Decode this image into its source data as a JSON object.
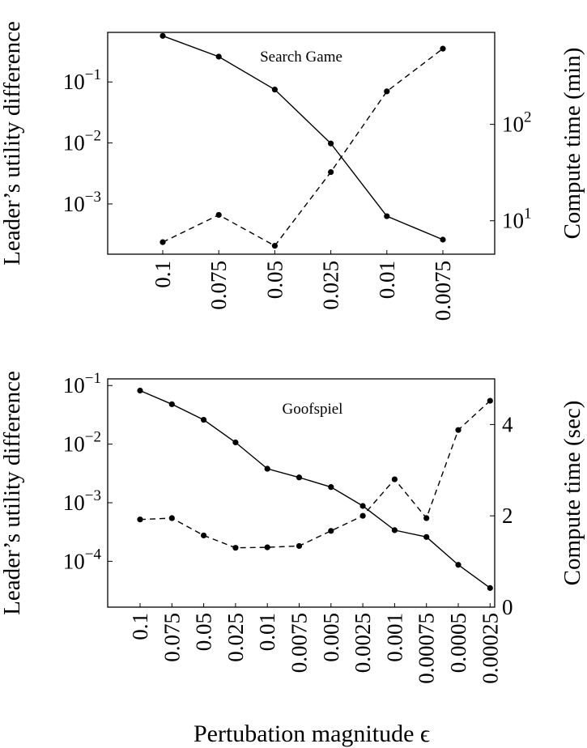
{
  "figure": {
    "xlabel": "Pertubation magnitude ϵ"
  },
  "chart_data": [
    {
      "type": "line",
      "title": "Search Game",
      "categories": [
        "0.1",
        "0.075",
        "0.05",
        "0.025",
        "0.01",
        "0.0075"
      ],
      "ylabel_left": "Leader’s utility difference",
      "ylabel_right": "Compute time (min)",
      "left_axis": {
        "scale": "log",
        "ylim": [
          0.00015,
          0.65
        ],
        "ticks": [
          0.001,
          0.01,
          0.1
        ],
        "tick_labels": [
          [
            "10",
            "−3"
          ],
          [
            "10",
            "−2"
          ],
          [
            "10",
            "−1"
          ]
        ]
      },
      "right_axis": {
        "scale": "log",
        "ylim": [
          4.5,
          900
        ],
        "ticks": [
          10,
          100
        ],
        "tick_labels": [
          [
            "10",
            "1"
          ],
          [
            "10",
            "2"
          ]
        ]
      },
      "series": [
        {
          "axis": "left",
          "style": "solid",
          "values": [
            0.57,
            0.26,
            0.075,
            0.0098,
            0.00063,
            0.00026
          ]
        },
        {
          "axis": "right",
          "style": "dashed",
          "values": [
            6.0,
            11.5,
            5.5,
            32,
            220,
            610
          ]
        }
      ],
      "grid": false
    },
    {
      "type": "line",
      "title": "Goofspiel",
      "categories": [
        "0.1",
        "0.075",
        "0.05",
        "0.025",
        "0.01",
        "0.0075",
        "0.005",
        "0.0025",
        "0.001",
        "0.00075",
        "0.0005",
        "0.00025"
      ],
      "ylabel_left": "Leader’s utility difference",
      "ylabel_right": "Compute time (sec)",
      "left_axis": {
        "scale": "log",
        "ylim": [
          1.65e-05,
          0.13
        ],
        "ticks": [
          0.0001,
          0.001,
          0.01,
          0.1
        ],
        "tick_labels": [
          [
            "10",
            "−4"
          ],
          [
            "10",
            "−3"
          ],
          [
            "10",
            "−2"
          ],
          [
            "10",
            "−1"
          ]
        ]
      },
      "right_axis": {
        "scale": "linear",
        "ylim": [
          0,
          5
        ],
        "ticks": [
          0,
          2,
          4
        ],
        "tick_labels": [
          [
            "0",
            ""
          ],
          [
            "2",
            ""
          ],
          [
            "4",
            ""
          ]
        ]
      },
      "series": [
        {
          "axis": "left",
          "style": "solid",
          "values": [
            0.082,
            0.048,
            0.026,
            0.0107,
            0.0038,
            0.0027,
            0.00185,
            0.00088,
            0.00034,
            0.00026,
            8.7e-05,
            3.5e-05
          ]
        },
        {
          "axis": "right",
          "style": "dashed",
          "values": [
            1.92,
            1.95,
            1.57,
            1.3,
            1.31,
            1.34,
            1.67,
            2.0,
            2.8,
            1.95,
            3.88,
            4.52
          ]
        }
      ],
      "grid": false
    }
  ]
}
